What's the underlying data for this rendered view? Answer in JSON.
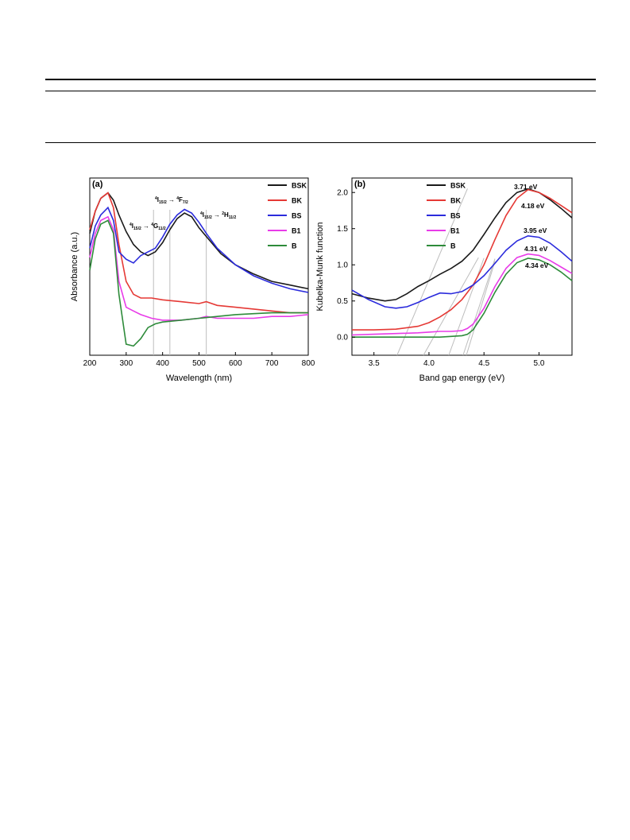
{
  "colors": {
    "BSK": "#1a1a1a",
    "BK": "#e53935",
    "BS": "#2b2bdc",
    "B1": "#e83be8",
    "B": "#2e8b3a",
    "guide": "#bdbdbd"
  },
  "chart_data": [
    {
      "type": "line",
      "panel_label": "(a)",
      "xlabel": "Wavelength (nm)",
      "ylabel": "Absorbance (a.u.)",
      "xlim": [
        200,
        800
      ],
      "xticks": [
        200,
        300,
        400,
        500,
        600,
        700,
        800
      ],
      "y_scale": "arbitrary units (no tick labels)",
      "legend": {
        "placement": "top-right",
        "entries": [
          "BSK",
          "BK",
          "BS",
          "B1",
          "B"
        ]
      },
      "annotations": [
        {
          "label": "4I15/2 → 4G11/2",
          "x": 375
        },
        {
          "label": "4I15/2 → 4F7/2",
          "x": 420
        },
        {
          "label": "4I15/2 → 2H11/2",
          "x": 520
        }
      ],
      "series": [
        {
          "name": "BSK",
          "x": [
            200,
            215,
            230,
            250,
            265,
            280,
            300,
            320,
            340,
            360,
            380,
            400,
            420,
            440,
            460,
            480,
            500,
            530,
            560,
            600,
            650,
            700,
            750,
            800
          ],
          "y": [
            0.78,
            0.9,
            0.97,
            1.0,
            0.96,
            0.88,
            0.79,
            0.72,
            0.68,
            0.66,
            0.68,
            0.73,
            0.8,
            0.86,
            0.89,
            0.87,
            0.81,
            0.74,
            0.67,
            0.61,
            0.56,
            0.52,
            0.5,
            0.48
          ]
        },
        {
          "name": "BK",
          "x": [
            200,
            215,
            230,
            250,
            265,
            280,
            300,
            320,
            340,
            370,
            400,
            450,
            500,
            520,
            550,
            600,
            650,
            700,
            750,
            800
          ],
          "y": [
            0.8,
            0.9,
            0.97,
            1.0,
            0.92,
            0.72,
            0.52,
            0.45,
            0.43,
            0.43,
            0.42,
            0.41,
            0.4,
            0.41,
            0.39,
            0.38,
            0.37,
            0.36,
            0.35,
            0.35
          ]
        },
        {
          "name": "BS",
          "x": [
            200,
            215,
            230,
            250,
            265,
            280,
            300,
            320,
            340,
            360,
            380,
            400,
            420,
            440,
            460,
            480,
            500,
            520,
            550,
            600,
            650,
            700,
            750,
            800
          ],
          "y": [
            0.7,
            0.82,
            0.88,
            0.92,
            0.85,
            0.68,
            0.64,
            0.62,
            0.66,
            0.68,
            0.7,
            0.76,
            0.83,
            0.88,
            0.91,
            0.89,
            0.84,
            0.78,
            0.7,
            0.61,
            0.55,
            0.51,
            0.48,
            0.46
          ]
        },
        {
          "name": "B1",
          "x": [
            200,
            215,
            230,
            250,
            265,
            280,
            300,
            320,
            340,
            370,
            400,
            450,
            500,
            520,
            550,
            600,
            650,
            700,
            750,
            800
          ],
          "y": [
            0.65,
            0.78,
            0.85,
            0.87,
            0.8,
            0.52,
            0.38,
            0.36,
            0.34,
            0.32,
            0.31,
            0.31,
            0.32,
            0.33,
            0.32,
            0.32,
            0.32,
            0.33,
            0.33,
            0.34
          ]
        },
        {
          "name": "B",
          "x": [
            200,
            215,
            230,
            250,
            265,
            280,
            300,
            320,
            340,
            360,
            380,
            400,
            450,
            500,
            550,
            600,
            650,
            700,
            750,
            800
          ],
          "y": [
            0.58,
            0.75,
            0.83,
            0.85,
            0.78,
            0.45,
            0.18,
            0.17,
            0.21,
            0.27,
            0.29,
            0.3,
            0.31,
            0.32,
            0.33,
            0.34,
            0.345,
            0.35,
            0.35,
            0.35
          ]
        }
      ]
    },
    {
      "type": "line",
      "panel_label": "(b)",
      "xlabel": "Band gap energy (eV)",
      "ylabel": "Kubelka-Munk function",
      "xlim": [
        3.3,
        5.3
      ],
      "ylim": [
        -0.25,
        2.2
      ],
      "xticks": [
        "3.5",
        "4.0",
        "4.5",
        "5.0"
      ],
      "yticks": [
        "0.0",
        "0.5",
        "1.0",
        "1.5",
        "2.0"
      ],
      "legend": {
        "placement": "top-left",
        "entries": [
          "BSK",
          "BK",
          "BS",
          "B1",
          "B"
        ]
      },
      "band_gaps": [
        {
          "series": "BSK",
          "value": "3.71 eV"
        },
        {
          "series": "BK",
          "value": "4.18 eV"
        },
        {
          "series": "BS",
          "value": "3.95 eV"
        },
        {
          "series": "B1",
          "value": "4.31 eV"
        },
        {
          "series": "B",
          "value": "4.34 eV"
        }
      ],
      "series": [
        {
          "name": "BSK",
          "x": [
            3.3,
            3.45,
            3.6,
            3.7,
            3.8,
            3.9,
            4.0,
            4.1,
            4.2,
            4.3,
            4.4,
            4.5,
            4.6,
            4.7,
            4.8,
            4.9,
            5.0,
            5.1,
            5.2,
            5.3
          ],
          "y": [
            0.6,
            0.54,
            0.5,
            0.52,
            0.6,
            0.7,
            0.78,
            0.87,
            0.95,
            1.05,
            1.2,
            1.42,
            1.65,
            1.86,
            2.0,
            2.05,
            2.0,
            1.9,
            1.78,
            1.65
          ]
        },
        {
          "name": "BK",
          "x": [
            3.3,
            3.5,
            3.7,
            3.9,
            4.0,
            4.1,
            4.2,
            4.3,
            4.4,
            4.5,
            4.6,
            4.7,
            4.8,
            4.9,
            5.0,
            5.1,
            5.2,
            5.3
          ],
          "y": [
            0.1,
            0.1,
            0.11,
            0.15,
            0.2,
            0.28,
            0.38,
            0.52,
            0.72,
            1.0,
            1.35,
            1.68,
            1.92,
            2.04,
            2.0,
            1.92,
            1.82,
            1.72
          ]
        },
        {
          "name": "BS",
          "x": [
            3.3,
            3.45,
            3.6,
            3.7,
            3.8,
            3.9,
            4.0,
            4.1,
            4.2,
            4.3,
            4.4,
            4.5,
            4.6,
            4.7,
            4.8,
            4.9,
            5.0,
            5.1,
            5.2,
            5.3
          ],
          "y": [
            0.65,
            0.52,
            0.42,
            0.4,
            0.42,
            0.48,
            0.55,
            0.61,
            0.6,
            0.63,
            0.72,
            0.85,
            1.02,
            1.2,
            1.33,
            1.4,
            1.38,
            1.3,
            1.18,
            1.05
          ]
        },
        {
          "name": "B1",
          "x": [
            3.3,
            3.5,
            3.7,
            3.9,
            4.0,
            4.1,
            4.2,
            4.3,
            4.35,
            4.4,
            4.5,
            4.6,
            4.7,
            4.8,
            4.9,
            5.0,
            5.1,
            5.2,
            5.3
          ],
          "y": [
            0.03,
            0.04,
            0.05,
            0.06,
            0.07,
            0.08,
            0.08,
            0.09,
            0.12,
            0.18,
            0.4,
            0.7,
            0.95,
            1.1,
            1.15,
            1.13,
            1.06,
            0.97,
            0.88
          ]
        },
        {
          "name": "B",
          "x": [
            3.3,
            3.5,
            3.7,
            3.9,
            4.1,
            4.3,
            4.35,
            4.4,
            4.5,
            4.6,
            4.7,
            4.8,
            4.9,
            5.0,
            5.1,
            5.2,
            5.3
          ],
          "y": [
            0.0,
            0.0,
            0.0,
            0.0,
            0.0,
            0.02,
            0.04,
            0.1,
            0.33,
            0.62,
            0.87,
            1.03,
            1.09,
            1.07,
            1.0,
            0.9,
            0.78
          ]
        }
      ]
    }
  ]
}
